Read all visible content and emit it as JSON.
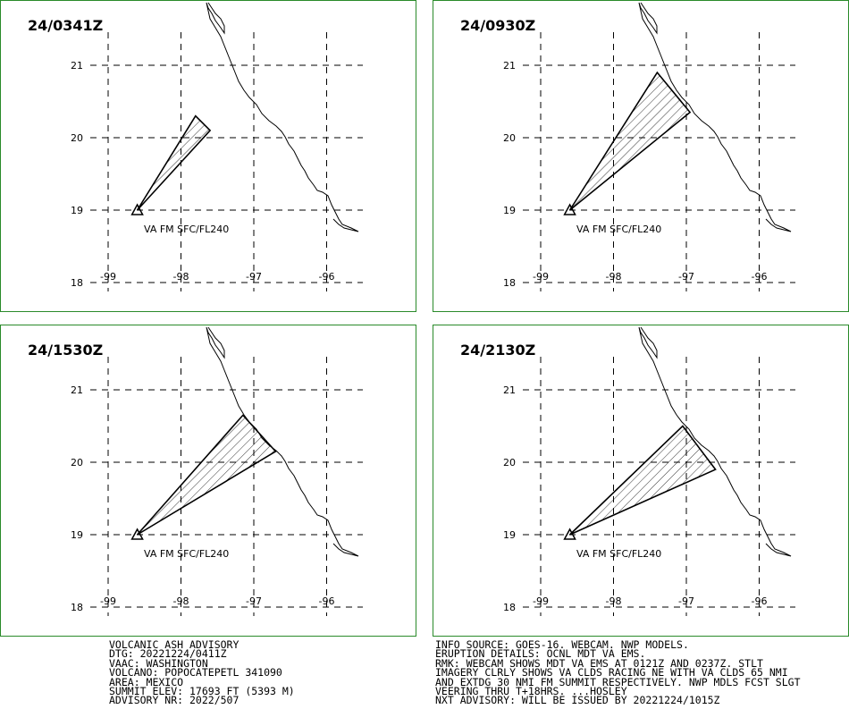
{
  "panels": [
    {
      "time": "24/0341Z",
      "label": "VA FM SFC/FL240",
      "cloud": [
        [
          -98.6,
          19.0
        ],
        [
          -97.8,
          20.3
        ],
        [
          -97.6,
          20.1
        ]
      ]
    },
    {
      "time": "24/0930Z",
      "label": "VA FM SFC/FL240",
      "cloud": [
        [
          -98.6,
          19.0
        ],
        [
          -97.4,
          20.9
        ],
        [
          -96.95,
          20.35
        ]
      ]
    },
    {
      "time": "24/1530Z",
      "label": "VA FM SFC/FL240",
      "cloud": [
        [
          -98.6,
          19.0
        ],
        [
          -97.15,
          20.65
        ],
        [
          -96.7,
          20.15
        ]
      ]
    },
    {
      "time": "24/2130Z",
      "label": "VA FM SFC/FL240",
      "cloud": [
        [
          -98.6,
          19.0
        ],
        [
          -97.05,
          20.5
        ],
        [
          -96.6,
          19.9
        ]
      ]
    }
  ],
  "lat_labels": [
    "21",
    "20",
    "19",
    "18"
  ],
  "lon_labels": [
    "-99",
    "-98",
    "-97",
    "-96"
  ],
  "advisory_left": [
    "VOLCANIC ASH ADVISORY",
    "DTG: 20221224/0411Z",
    "VAAC: WASHINGTON",
    "VOLCANO: POPOCATEPETL 341090",
    "AREA: MEXICO",
    "SUMMIT ELEV: 17693 FT (5393 M)",
    "ADVISORY NR: 2022/507"
  ],
  "advisory_right": [
    "INFO SOURCE: GOES-16. WEBCAM. NWP MODELS.",
    "ERUPTION DETAILS: OCNL MDT VA EMS.",
    "RMK: WEBCAM SHOWS MDT VA EMS AT 0121Z AND 0237Z. STLT",
    "IMAGERY CLRLY SHOWS VA CLDS RACING NE WITH VA CLDS 65 NMI",
    "AND EXTDG 30 NMI FM SUMMIT RESPECTIVELY. NWP MDLS FCST SLGT",
    "VEERING THRU T+18HRS. ...HOSLEY",
    "NXT ADVISORY: WILL BE ISSUED BY 20221224/1015Z"
  ],
  "colors": {
    "border": "#2a8a2a",
    "ink": "#000000",
    "grid": "#000000"
  }
}
